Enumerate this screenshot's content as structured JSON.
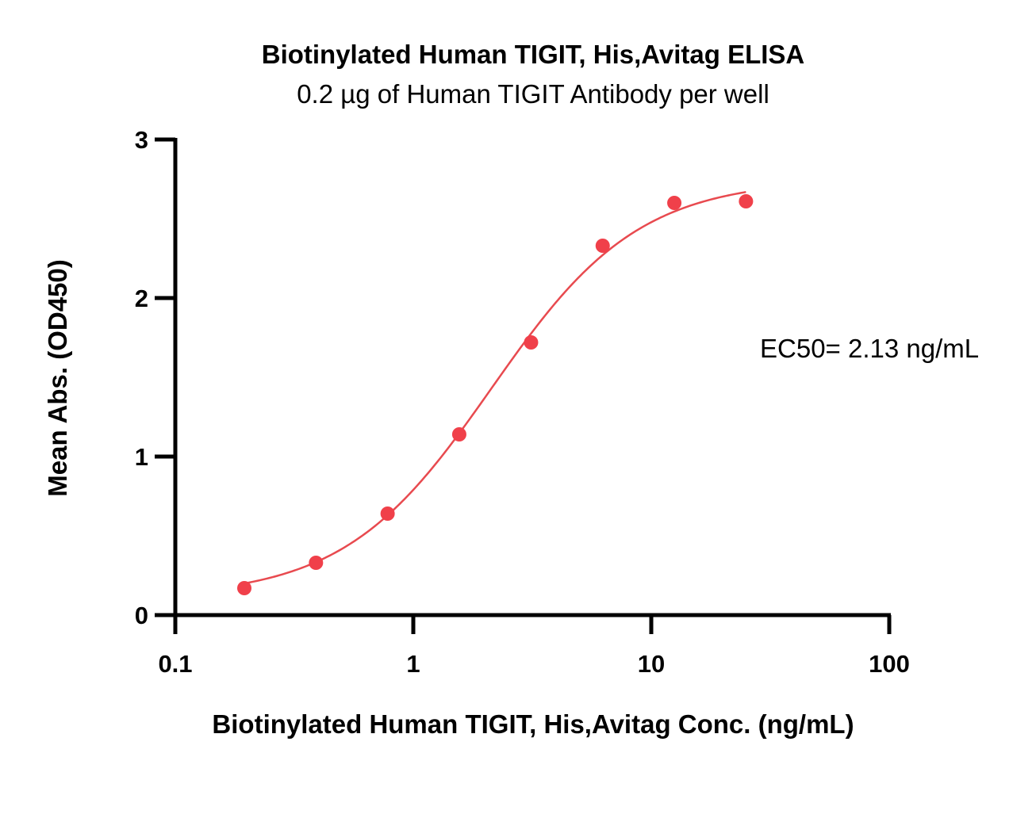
{
  "chart_data": {
    "type": "scatter",
    "title": "Biotinylated Human TIGIT, His,Avitag ELISA",
    "subtitle": "0.2 µg of Human TIGIT Antibody per well",
    "xlabel": "Biotinylated Human TIGIT, His,Avitag Conc. (ng/mL)",
    "ylabel": "Mean Abs. (OD450)",
    "x_scale": "log",
    "xlim": [
      0.1,
      100
    ],
    "ylim": [
      0,
      3
    ],
    "x_ticks": [
      0.1,
      1,
      10,
      100
    ],
    "x_tick_labels": [
      "0.1",
      "1",
      "10",
      "100"
    ],
    "y_ticks": [
      0,
      1,
      2,
      3
    ],
    "y_tick_labels": [
      "0",
      "1",
      "2",
      "3"
    ],
    "grid": false,
    "legend": "none",
    "series": [
      {
        "color": "#f0404a",
        "x": [
          0.195,
          0.39,
          0.78,
          1.56,
          3.125,
          6.25,
          12.5,
          25
        ],
        "y": [
          0.17,
          0.33,
          0.64,
          1.14,
          1.72,
          2.33,
          2.6,
          2.61
        ]
      }
    ],
    "fit_curve": {
      "model": "4PL",
      "color": "#e84a4f",
      "x_range": [
        0.195,
        25
      ],
      "bottom": 0.11,
      "top": 2.75,
      "ec50": 2.13,
      "hill": 1.4
    },
    "annotation": "EC50= 2.13 ng/mL"
  }
}
